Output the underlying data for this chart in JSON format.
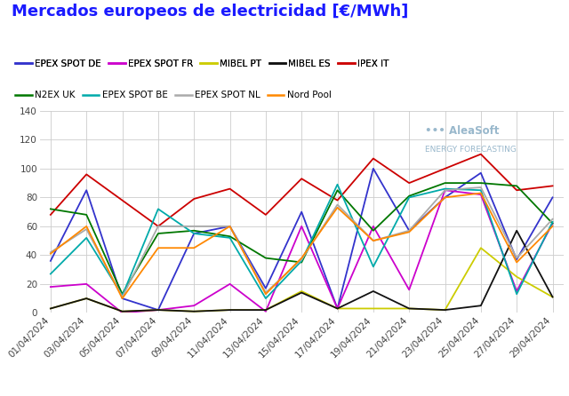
{
  "title": "Mercados europeos de electricidad [€/MWh]",
  "title_color": "#1a1aff",
  "background_color": "#ffffff",
  "grid_color": "#cccccc",
  "ylim": [
    0,
    140
  ],
  "yticks": [
    0,
    20,
    40,
    60,
    80,
    100,
    120,
    140
  ],
  "dates": [
    "01/04/2024",
    "03/04/2024",
    "05/04/2024",
    "07/04/2024",
    "09/04/2024",
    "11/04/2024",
    "13/04/2024",
    "15/04/2024",
    "17/04/2024",
    "19/04/2024",
    "21/04/2024",
    "23/04/2024",
    "25/04/2024",
    "27/04/2024",
    "29/04/2024"
  ],
  "series": [
    {
      "name": "EPEX SPOT DE",
      "color": "#3333cc",
      "values": [
        36,
        85,
        10,
        2,
        55,
        60,
        17,
        70,
        3,
        100,
        57,
        80,
        97,
        37,
        80
      ]
    },
    {
      "name": "EPEX SPOT FR",
      "color": "#cc00cc",
      "values": [
        18,
        20,
        0,
        2,
        5,
        20,
        1,
        60,
        3,
        60,
        16,
        85,
        82,
        15,
        62
      ]
    },
    {
      "name": "MIBEL PT",
      "color": "#cccc00",
      "values": [
        3,
        10,
        1,
        2,
        1,
        2,
        2,
        15,
        3,
        3,
        3,
        2,
        45,
        25,
        11
      ]
    },
    {
      "name": "MIBEL ES",
      "color": "#111111",
      "values": [
        3,
        10,
        1,
        2,
        1,
        2,
        2,
        14,
        3,
        15,
        3,
        2,
        5,
        57,
        11
      ]
    },
    {
      "name": "IPEX IT",
      "color": "#cc0000",
      "values": [
        68,
        96,
        78,
        60,
        79,
        86,
        68,
        93,
        78,
        107,
        90,
        100,
        110,
        85,
        88
      ]
    },
    {
      "name": "N2EX UK",
      "color": "#007700",
      "values": [
        72,
        68,
        13,
        55,
        57,
        53,
        38,
        35,
        85,
        57,
        81,
        90,
        90,
        88,
        62
      ]
    },
    {
      "name": "EPEX SPOT BE",
      "color": "#00aaaa",
      "values": [
        27,
        52,
        12,
        72,
        55,
        52,
        10,
        36,
        89,
        32,
        80,
        86,
        85,
        13,
        63
      ]
    },
    {
      "name": "EPEX SPOT NL",
      "color": "#aaaaaa",
      "values": [
        42,
        58,
        11,
        60,
        60,
        60,
        14,
        37,
        75,
        50,
        57,
        85,
        87,
        38,
        65
      ]
    },
    {
      "name": "Nord Pool",
      "color": "#ff8800",
      "values": [
        41,
        60,
        10,
        45,
        45,
        60,
        13,
        38,
        73,
        50,
        56,
        80,
        83,
        35,
        60
      ]
    }
  ],
  "legend_row1": [
    0,
    1,
    2,
    3,
    4
  ],
  "legend_row2": [
    5,
    6,
    7,
    8
  ],
  "watermark_line1": "••• AleaSoft",
  "watermark_line2": "ENERGY FORECASTING",
  "watermark_color": "#99b8cc",
  "legend_fontsize": 7.5,
  "title_fontsize": 13,
  "tick_fontsize": 7.5,
  "linewidth": 1.3
}
